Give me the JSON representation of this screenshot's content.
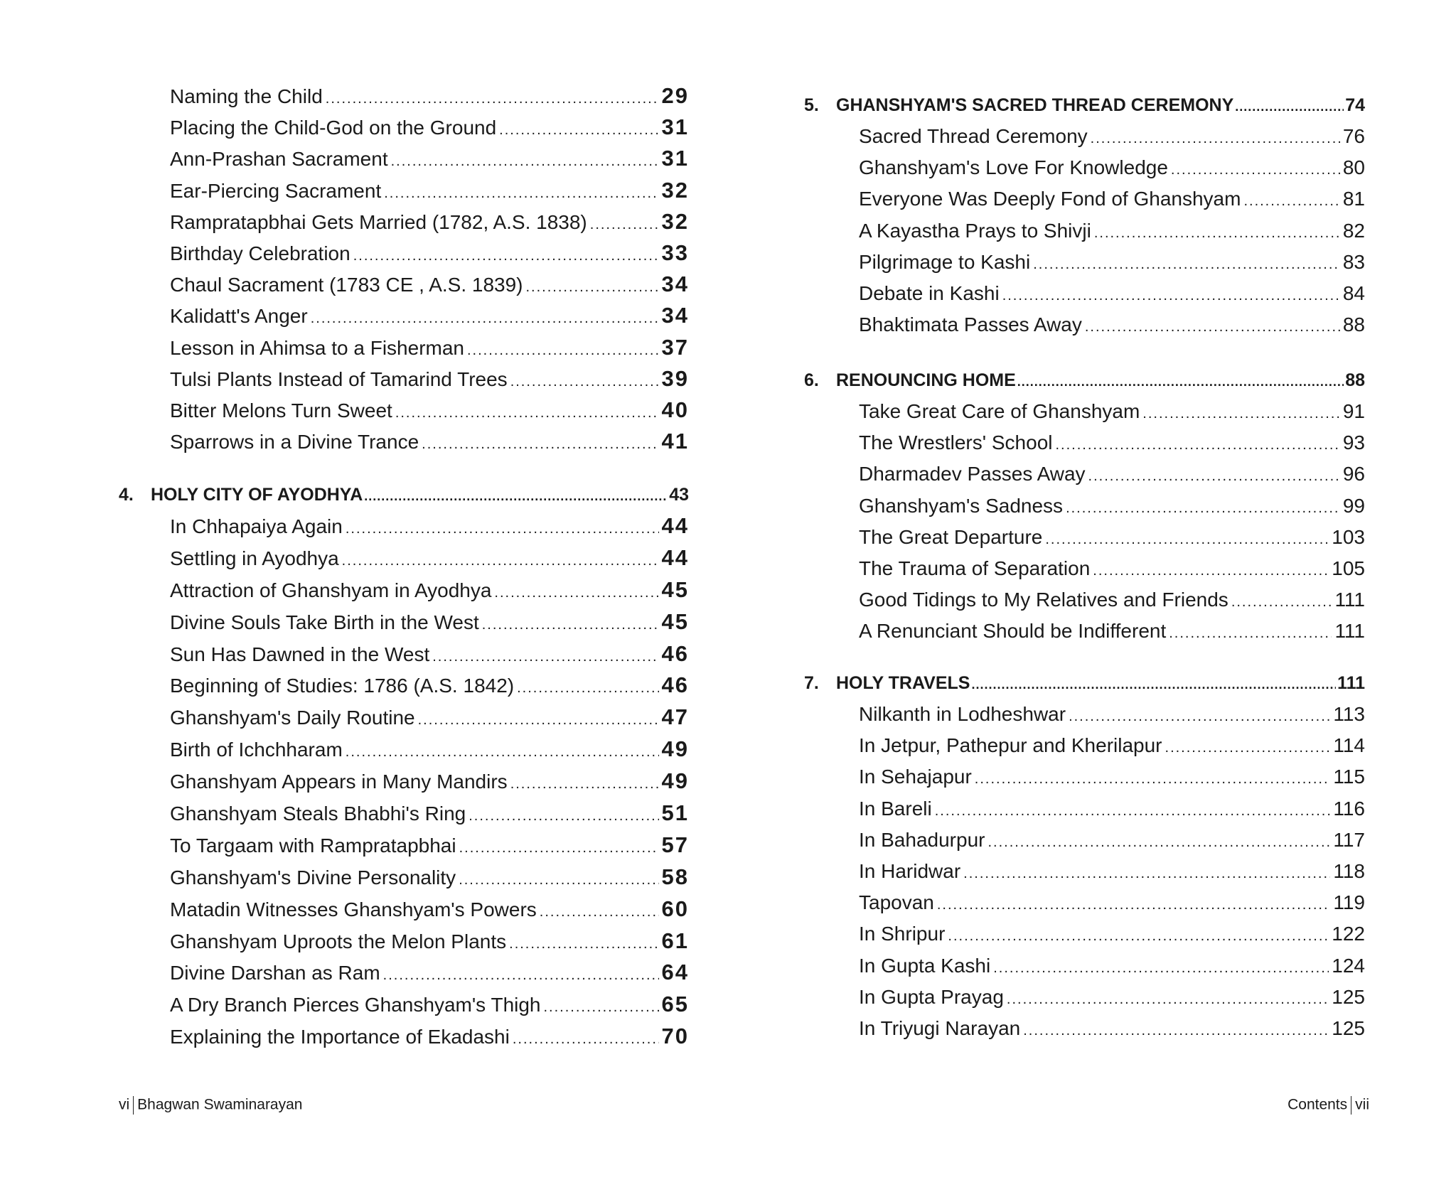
{
  "left_page": {
    "entries_top": [
      {
        "title": "Naming the Child",
        "page": "29"
      },
      {
        "title": "Placing the Child-God on the Ground",
        "page": "31"
      },
      {
        "title": "Ann-Prashan Sacrament",
        "page": "31"
      },
      {
        "title": "Ear-Piercing Sacrament",
        "page": "32"
      },
      {
        "title": "Rampratapbhai Gets Married (1782, A.S. 1838)",
        "page": "32"
      },
      {
        "title": "Birthday Celebration",
        "page": "33"
      },
      {
        "title": "Chaul Sacrament (1783 CE , A.S. 1839)",
        "page": "34"
      },
      {
        "title": "Kalidatt's Anger",
        "page": "34"
      },
      {
        "title": "Lesson in Ahimsa to a Fisherman",
        "page": "37"
      },
      {
        "title": "Tulsi Plants Instead of Tamarind Trees",
        "page": "39"
      },
      {
        "title": "Bitter Melons Turn Sweet",
        "page": "40"
      },
      {
        "title": "Sparrows in a Divine Trance",
        "page": "41"
      }
    ],
    "chapters": [
      {
        "number": "4.",
        "title": "HOLY CITY OF AYODHYA",
        "page": "43",
        "entries": [
          {
            "title": "In Chhapaiya Again",
            "page": "44"
          },
          {
            "title": "Settling in Ayodhya",
            "page": "44"
          },
          {
            "title": "Attraction of Ghanshyam in Ayodhya",
            "page": "45"
          },
          {
            "title": "Divine Souls Take Birth in the West",
            "page": "45"
          },
          {
            "title": "Sun Has Dawned in the West",
            "page": "46"
          },
          {
            "title": "Beginning of Studies: 1786 (A.S. 1842)",
            "page": "46"
          },
          {
            "title": "Ghanshyam's Daily Routine",
            "page": "47"
          },
          {
            "title": "Birth of Ichchharam",
            "page": "49"
          },
          {
            "title": "Ghanshyam Appears in Many Mandirs",
            "page": "49"
          },
          {
            "title": "Ghanshyam Steals Bhabhi's Ring",
            "page": "51"
          },
          {
            "title": "To Targaam with Rampratapbhai",
            "page": "57"
          },
          {
            "title": "Ghanshyam's Divine Personality",
            "page": "58"
          },
          {
            "title": "Matadin Witnesses Ghanshyam's Powers",
            "page": "60"
          },
          {
            "title": "Ghanshyam Uproots the Melon Plants",
            "page": "61"
          },
          {
            "title": "Divine Darshan as Ram",
            "page": "64"
          },
          {
            "title": "A Dry Branch Pierces Ghanshyam's Thigh",
            "page": "65"
          },
          {
            "title": "Explaining the Importance of Ekadashi",
            "page": "70"
          }
        ]
      }
    ],
    "footer": {
      "folio": "vi",
      "book_title": "Bhagwan Swaminarayan"
    }
  },
  "right_page": {
    "chapters": [
      {
        "number": "5.",
        "title": "GHANSHYAM'S SACRED THREAD CEREMONY",
        "page": "74",
        "entries": [
          {
            "title": "Sacred Thread Ceremony",
            "page": "76"
          },
          {
            "title": "Ghanshyam's Love For Knowledge",
            "page": "80"
          },
          {
            "title": "Everyone Was Deeply Fond of Ghanshyam",
            "page": "81"
          },
          {
            "title": "A Kayastha Prays to Shivji",
            "page": "82"
          },
          {
            "title": "Pilgrimage to Kashi",
            "page": "83"
          },
          {
            "title": "Debate in Kashi",
            "page": "84"
          },
          {
            "title": "Bhaktimata Passes Away",
            "page": "88"
          }
        ]
      },
      {
        "number": "6.",
        "title": "RENOUNCING HOME",
        "page": "88",
        "entries": [
          {
            "title": "Take Great Care of Ghanshyam",
            "page": "91"
          },
          {
            "title": "The Wrestlers' School",
            "page": "93"
          },
          {
            "title": "Dharmadev Passes Away",
            "page": "96"
          },
          {
            "title": "Ghanshyam's Sadness",
            "page": "99"
          },
          {
            "title": "The Great Departure",
            "page": "103"
          },
          {
            "title": "The Trauma of Separation",
            "page": "105"
          },
          {
            "title": "Good Tidings to My Relatives and Friends",
            "page": "111"
          },
          {
            "title": "A Renunciant Should be Indifferent",
            "page": "111"
          }
        ]
      },
      {
        "number": "7.",
        "title": "HOLY TRAVELS",
        "page": "111",
        "entries": [
          {
            "title": "Nilkanth in Lodheshwar",
            "page": "113"
          },
          {
            "title": "In Jetpur, Pathepur and Kherilapur",
            "page": "114"
          },
          {
            "title": "In Sehajapur",
            "page": "115"
          },
          {
            "title": "In Bareli",
            "page": "116"
          },
          {
            "title": "In Bahadurpur",
            "page": "117"
          },
          {
            "title": "In Haridwar",
            "page": "118"
          },
          {
            "title": "Tapovan",
            "page": "119"
          },
          {
            "title": "In Shripur",
            "page": "122"
          },
          {
            "title": "In Gupta Kashi",
            "page": "124"
          },
          {
            "title": "In Gupta Prayag",
            "page": "125"
          },
          {
            "title": "In Triyugi Narayan",
            "page": "125"
          }
        ]
      }
    ],
    "footer": {
      "section": "Contents",
      "folio": "vii"
    }
  }
}
